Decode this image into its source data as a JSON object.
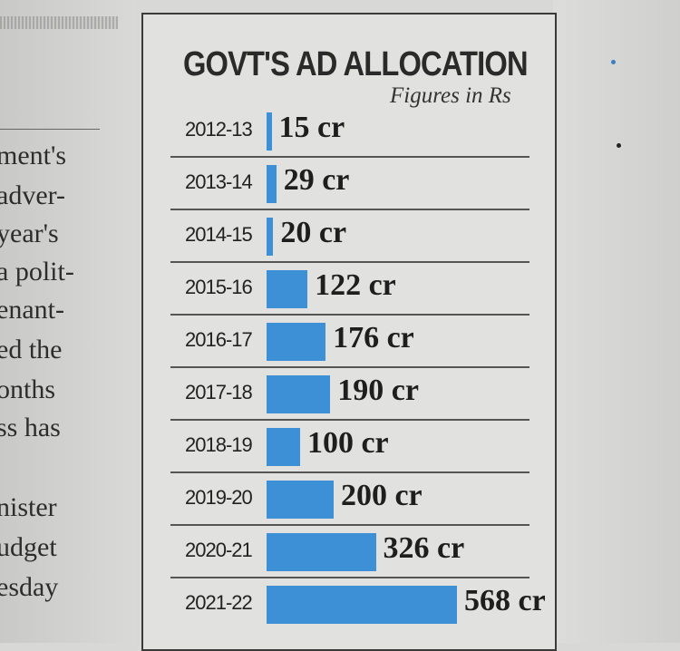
{
  "left_column": {
    "lines": [
      "ment's",
      "adver-",
      "year's",
      "a polit-",
      "enant-",
      "ed the",
      "onths",
      "ss has",
      "",
      "nister",
      "udget",
      "esday"
    ]
  },
  "chart_data": {
    "type": "bar",
    "orientation": "horizontal",
    "title": "GOVT'S AD ALLOCATION",
    "subtitle": "Figures in Rs",
    "unit": "cr",
    "categories": [
      "2012-13",
      "2013-14",
      "2014-15",
      "2015-16",
      "2016-17",
      "2017-18",
      "2018-19",
      "2019-20",
      "2020-21",
      "2021-22"
    ],
    "values": [
      15,
      29,
      20,
      122,
      176,
      190,
      100,
      200,
      326,
      568
    ],
    "value_labels": [
      "15 cr",
      "29 cr",
      "20 cr",
      "122 cr",
      "176 cr",
      "190 cr",
      "100 cr",
      "200 cr",
      "326 cr",
      "568 cr"
    ],
    "bar_color": "#3d8fd6",
    "xlim": [
      0,
      568
    ],
    "grid": false
  }
}
